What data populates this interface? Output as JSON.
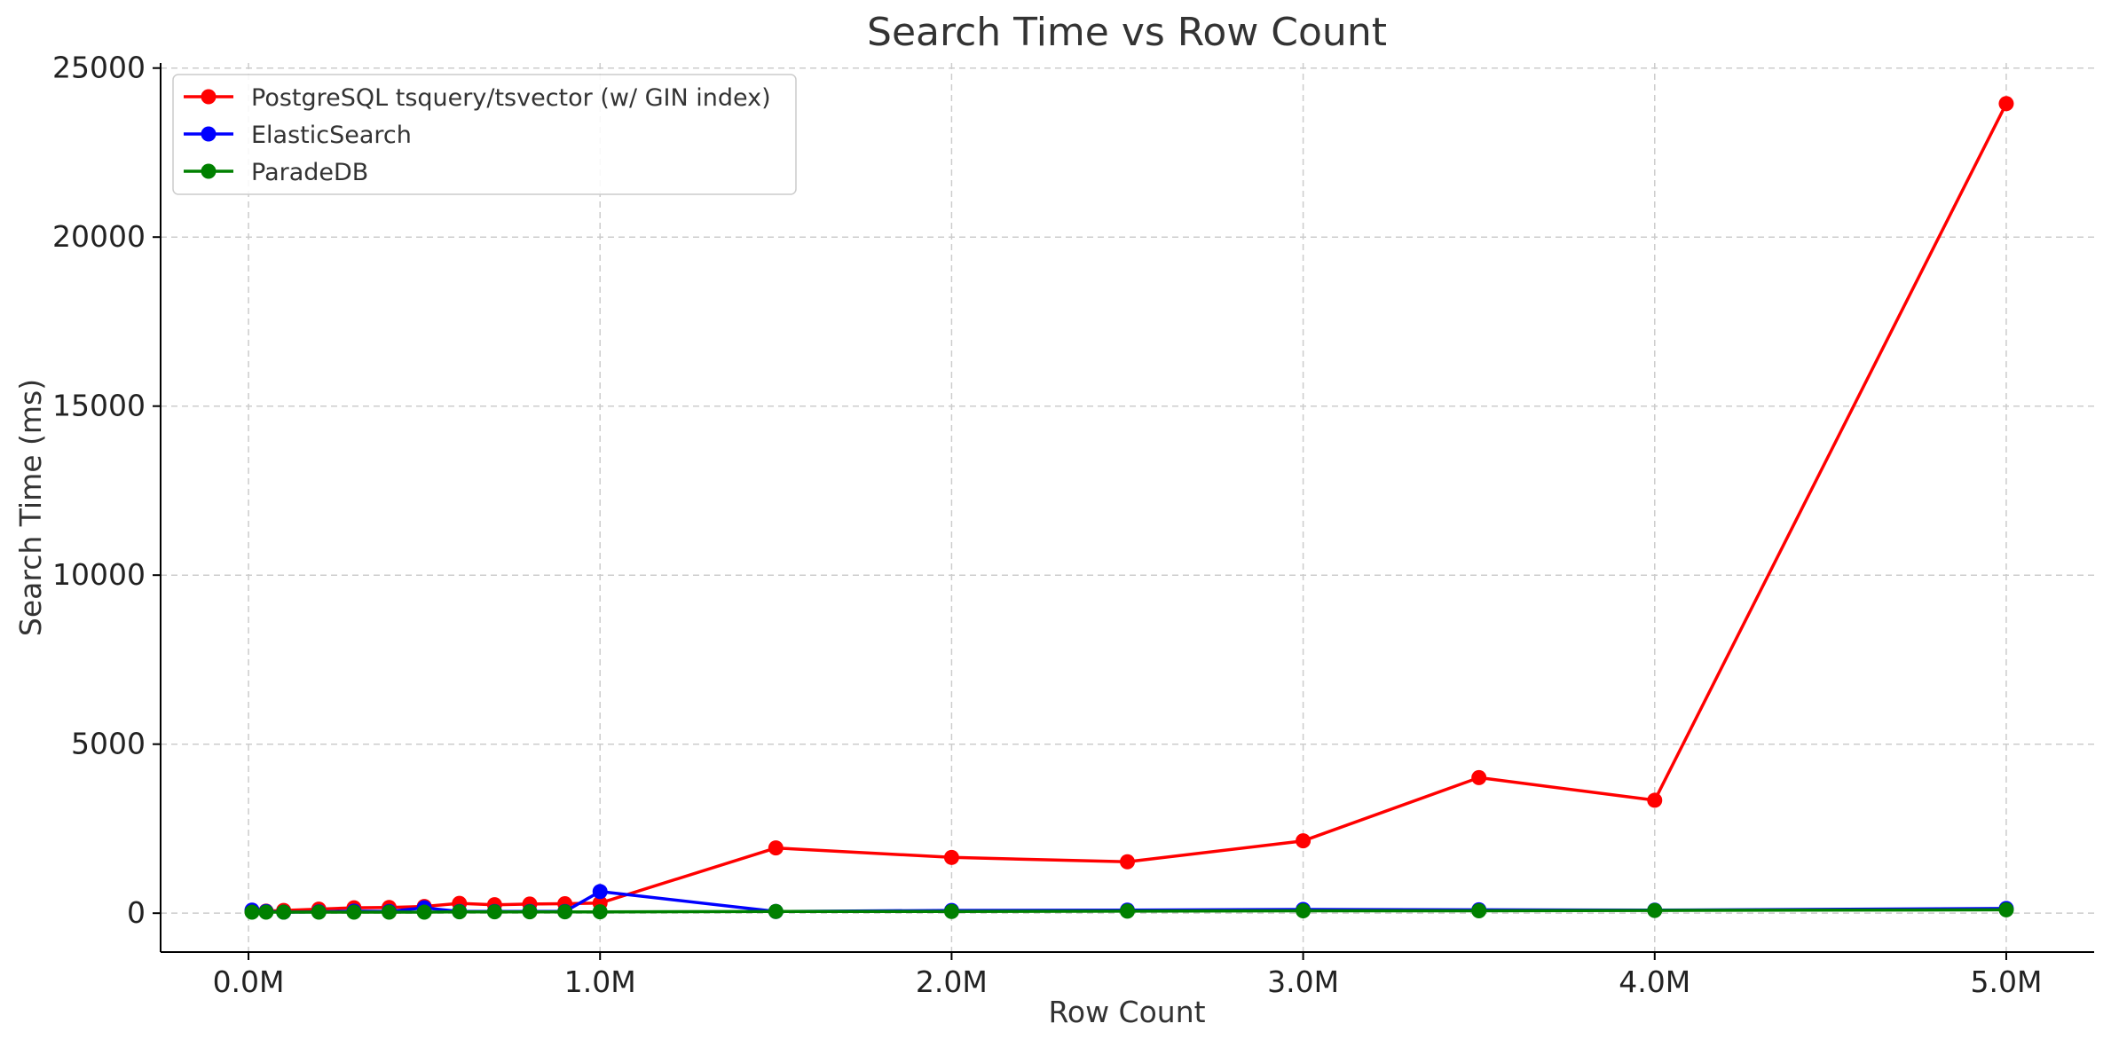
{
  "chart_data": {
    "type": "line",
    "title": "Search Time vs Row Count",
    "xlabel": "Row Count",
    "ylabel": "Search Time (ms)",
    "xlim": [
      -0.25,
      5.25
    ],
    "ylim": [
      -1150,
      25150
    ],
    "x_ticks": [
      0,
      1,
      2,
      3,
      4,
      5
    ],
    "x_tick_labels": [
      "0.0M",
      "1.0M",
      "2.0M",
      "3.0M",
      "4.0M",
      "5.0M"
    ],
    "y_ticks": [
      0,
      5000,
      10000,
      15000,
      20000,
      25000
    ],
    "y_tick_labels": [
      "0",
      "5000",
      "10000",
      "15000",
      "20000",
      "25000"
    ],
    "grid": true,
    "legend_position": "top-left",
    "series": [
      {
        "name": "PostgreSQL tsquery/tsvector (w/ GIN index)",
        "color": "#ff0000",
        "points": [
          [
            0.01,
            50
          ],
          [
            0.05,
            60
          ],
          [
            0.1,
            80
          ],
          [
            0.2,
            120
          ],
          [
            0.3,
            160
          ],
          [
            0.4,
            170
          ],
          [
            0.5,
            200
          ],
          [
            0.6,
            290
          ],
          [
            0.7,
            250
          ],
          [
            0.8,
            270
          ],
          [
            0.9,
            280
          ],
          [
            1.0,
            300
          ],
          [
            1.5,
            1930
          ],
          [
            2.0,
            1650
          ],
          [
            2.5,
            1520
          ],
          [
            3.0,
            2140
          ],
          [
            3.5,
            4010
          ],
          [
            4.0,
            3340
          ],
          [
            5.0,
            23950
          ]
        ]
      },
      {
        "name": "ElasticSearch",
        "color": "#0000ff",
        "points": [
          [
            0.01,
            90
          ],
          [
            0.05,
            50
          ],
          [
            0.1,
            30
          ],
          [
            0.2,
            40
          ],
          [
            0.3,
            60
          ],
          [
            0.4,
            50
          ],
          [
            0.5,
            160
          ],
          [
            0.6,
            50
          ],
          [
            0.7,
            50
          ],
          [
            0.8,
            50
          ],
          [
            0.9,
            50
          ],
          [
            1.0,
            640
          ],
          [
            1.5,
            50
          ],
          [
            2.0,
            80
          ],
          [
            2.5,
            90
          ],
          [
            3.0,
            110
          ],
          [
            3.5,
            100
          ],
          [
            4.0,
            90
          ],
          [
            5.0,
            140
          ]
        ]
      },
      {
        "name": "ParadeDB",
        "color": "#008000",
        "points": [
          [
            0.01,
            30
          ],
          [
            0.05,
            30
          ],
          [
            0.1,
            30
          ],
          [
            0.2,
            30
          ],
          [
            0.3,
            30
          ],
          [
            0.4,
            30
          ],
          [
            0.5,
            30
          ],
          [
            0.6,
            40
          ],
          [
            0.7,
            40
          ],
          [
            0.8,
            40
          ],
          [
            0.9,
            40
          ],
          [
            1.0,
            40
          ],
          [
            1.5,
            50
          ],
          [
            2.0,
            50
          ],
          [
            2.5,
            60
          ],
          [
            3.0,
            70
          ],
          [
            3.5,
            70
          ],
          [
            4.0,
            80
          ],
          [
            5.0,
            100
          ]
        ]
      }
    ]
  }
}
